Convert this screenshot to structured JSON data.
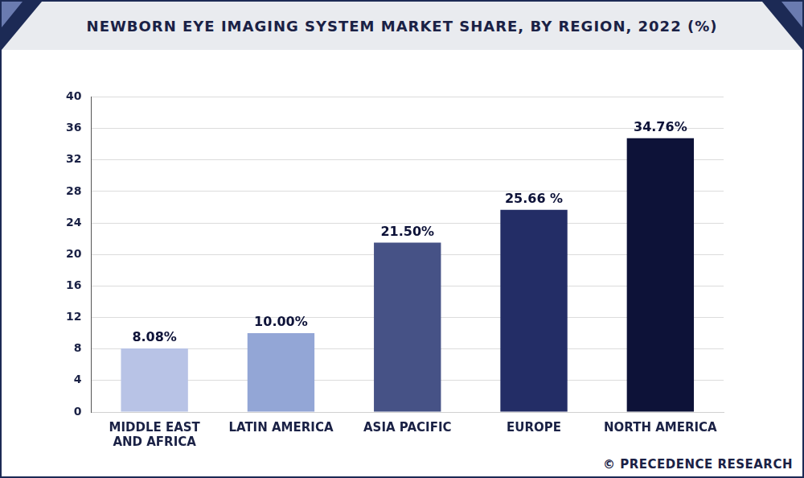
{
  "chart_data": {
    "type": "bar",
    "title": "NEWBORN EYE IMAGING SYSTEM MARKET SHARE, BY REGION, 2022 (%)",
    "categories": [
      "MIDDLE EAST AND AFRICA",
      "LATIN AMERICA",
      "ASIA PACIFIC",
      "EUROPE",
      "NORTH AMERICA"
    ],
    "values": [
      8.08,
      10.0,
      21.5,
      25.66,
      34.76
    ],
    "value_labels": [
      "8.08%",
      "10.00%",
      "21.50%",
      "25.66 %",
      "34.76%"
    ],
    "colors": [
      "#b8c3e6",
      "#93a6d6",
      "#465286",
      "#232d66",
      "#0d1238"
    ],
    "ylim": [
      0,
      40
    ],
    "yticks": [
      0,
      4,
      8,
      12,
      16,
      20,
      24,
      28,
      32,
      36,
      40
    ],
    "grid": true,
    "data_labels": true,
    "source": "© PRECEDENCE RESEARCH"
  }
}
